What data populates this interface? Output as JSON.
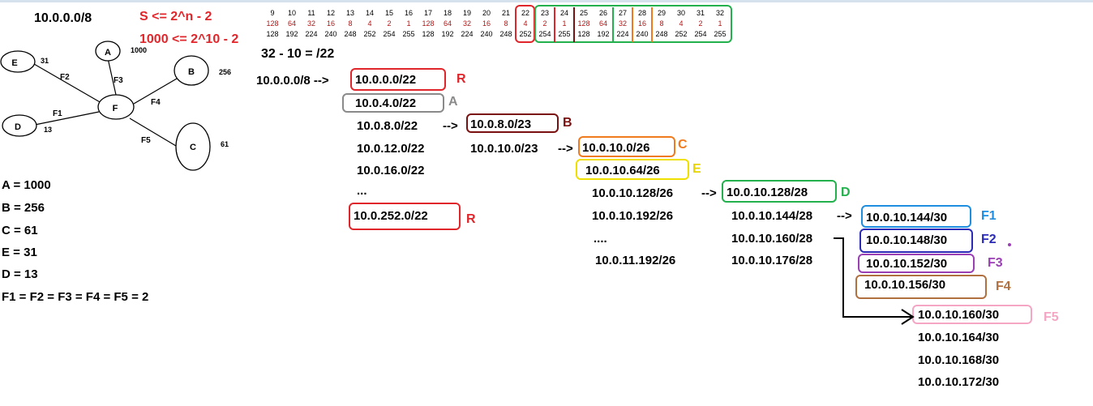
{
  "network": "10.0.0.0/8",
  "formula": {
    "line1": "S <= 2^n - 2",
    "line2": "1000 <= 2^10 - 2",
    "prefix_calc": "32 - 10 = /22"
  },
  "topology": {
    "nodes": {
      "A": "A",
      "B": "B",
      "C": "C",
      "D": "D",
      "E": "E",
      "F": "F"
    },
    "host_labels": {
      "A": "1000",
      "B": "256",
      "C": "61",
      "D": "13",
      "E": "31"
    },
    "links": {
      "F1": "F1",
      "F2": "F2",
      "F3": "F3",
      "F4": "F4",
      "F5": "F5"
    }
  },
  "requirements": [
    "A = 1000",
    "B = 256",
    "C = 61",
    "E = 31",
    "D = 13",
    "F1 = F2 = F3 = F4 = F5 = 2"
  ],
  "bit_table": {
    "bits": [
      "9",
      "10",
      "11",
      "12",
      "13",
      "14",
      "15",
      "16",
      "17",
      "18",
      "19",
      "20",
      "21",
      "22",
      "23",
      "24",
      "25",
      "26",
      "27",
      "28",
      "29",
      "30",
      "31",
      "32"
    ],
    "values": [
      "128",
      "64",
      "32",
      "16",
      "8",
      "4",
      "2",
      "1",
      "128",
      "64",
      "32",
      "16",
      "8",
      "4",
      "2",
      "1",
      "128",
      "64",
      "32",
      "16",
      "8",
      "4",
      "2",
      "1"
    ],
    "masks": [
      "128",
      "192",
      "224",
      "240",
      "248",
      "252",
      "254",
      "255",
      "128",
      "192",
      "224",
      "240",
      "248",
      "252",
      "254",
      "255",
      "128",
      "192",
      "224",
      "240",
      "248",
      "252",
      "254",
      "255"
    ]
  },
  "level22": {
    "source": "10.0.0.0/8 -->",
    "list": [
      "10.0.0.0/22",
      "10.0.4.0/22",
      "10.0.8.0/22",
      "10.0.12.0/22",
      "10.0.16.0/22",
      "...",
      "10.0.252.0/22"
    ],
    "arrow": "-->",
    "tags": {
      "first": "R",
      "second": "A",
      "last": "R"
    }
  },
  "level23": {
    "list": [
      "10.0.8.0/23",
      "10.0.10.0/23"
    ],
    "arrow": "-->",
    "tag": "B"
  },
  "level26": {
    "list": [
      "10.0.10.0/26",
      "10.0.10.64/26",
      "10.0.10.128/26",
      "10.0.10.192/26",
      "....",
      "10.0.11.192/26"
    ],
    "arrow": "-->",
    "tags": {
      "first": "C",
      "second": "E"
    }
  },
  "level28": {
    "list": [
      "10.0.10.128/28",
      "10.0.10.144/28",
      "10.0.10.160/28",
      "10.0.10.176/28"
    ],
    "arrow": "-->",
    "tag": "D"
  },
  "level30": {
    "list": [
      "10.0.10.144/30",
      "10.0.10.148/30",
      "10.0.10.152/30",
      "10.0.10.156/30",
      "10.0.10.160/30",
      "10.0.10.164/30",
      "10.0.10.168/30",
      "10.0.10.172/30"
    ],
    "tags": [
      "F1",
      "F2",
      "F3",
      "F4",
      "F5"
    ]
  },
  "colors": {
    "red": "#e0262b",
    "grey": "#8a8a8a",
    "dark_red": "#7a1010",
    "orange": "#f07a1e",
    "yellow": "#f0e000",
    "green": "#22b14c",
    "sky": "#1e8fe0",
    "navy": "#2b2bb8",
    "purple": "#9b3fb5",
    "brown": "#b07040",
    "pink": "#f4a6c4"
  }
}
